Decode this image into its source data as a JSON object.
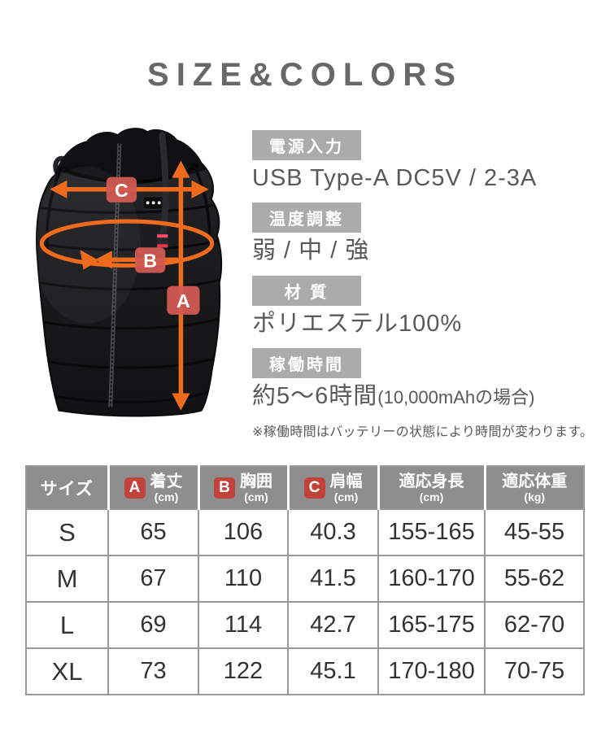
{
  "title": "SIZE&COLORS",
  "colors": {
    "accent_orange": "#ee6b1d",
    "vest_badge_red": "#d05a52",
    "table_badge_red": "#c2423c",
    "label_badge_gray": "#aaabab",
    "table_header_gray": "#8e8e8e",
    "table_border_gray": "#999999",
    "title_gray": "#686868",
    "text_gray": "#595959"
  },
  "vest": {
    "measurement_labels": [
      {
        "letter": "A"
      },
      {
        "letter": "B"
      },
      {
        "letter": "C"
      }
    ]
  },
  "specs": [
    {
      "label": "電源入力",
      "value": "USB Type-A DC5V / 2-3A"
    },
    {
      "label": "温度調整",
      "value": "弱 / 中 / 強"
    },
    {
      "label": "材 質",
      "value": "ポリエステル100%"
    },
    {
      "label": "稼働時間",
      "value": "約5〜6時間",
      "value_small": "(10,000mAhの場合)",
      "note": "※稼働時間はバッテリーの状態により時間が変わります。"
    }
  ],
  "size_table": {
    "headers": [
      {
        "label": "サイズ",
        "badge": "",
        "unit": ""
      },
      {
        "label": "着丈",
        "badge": "A",
        "unit": "(cm)"
      },
      {
        "label": "胸囲",
        "badge": "B",
        "unit": "(cm)"
      },
      {
        "label": "肩幅",
        "badge": "C",
        "unit": "(cm)"
      },
      {
        "label": "適応身長",
        "badge": "",
        "unit": "(cm)"
      },
      {
        "label": "適応体重",
        "badge": "",
        "unit": "(kg)"
      }
    ],
    "rows": [
      [
        "S",
        "65",
        "106",
        "40.3",
        "155-165",
        "45-55"
      ],
      [
        "M",
        "67",
        "110",
        "41.5",
        "160-170",
        "55-62"
      ],
      [
        "L",
        "69",
        "114",
        "42.7",
        "165-175",
        "62-70"
      ],
      [
        "XL",
        "73",
        "122",
        "45.1",
        "170-180",
        "70-75"
      ]
    ]
  }
}
